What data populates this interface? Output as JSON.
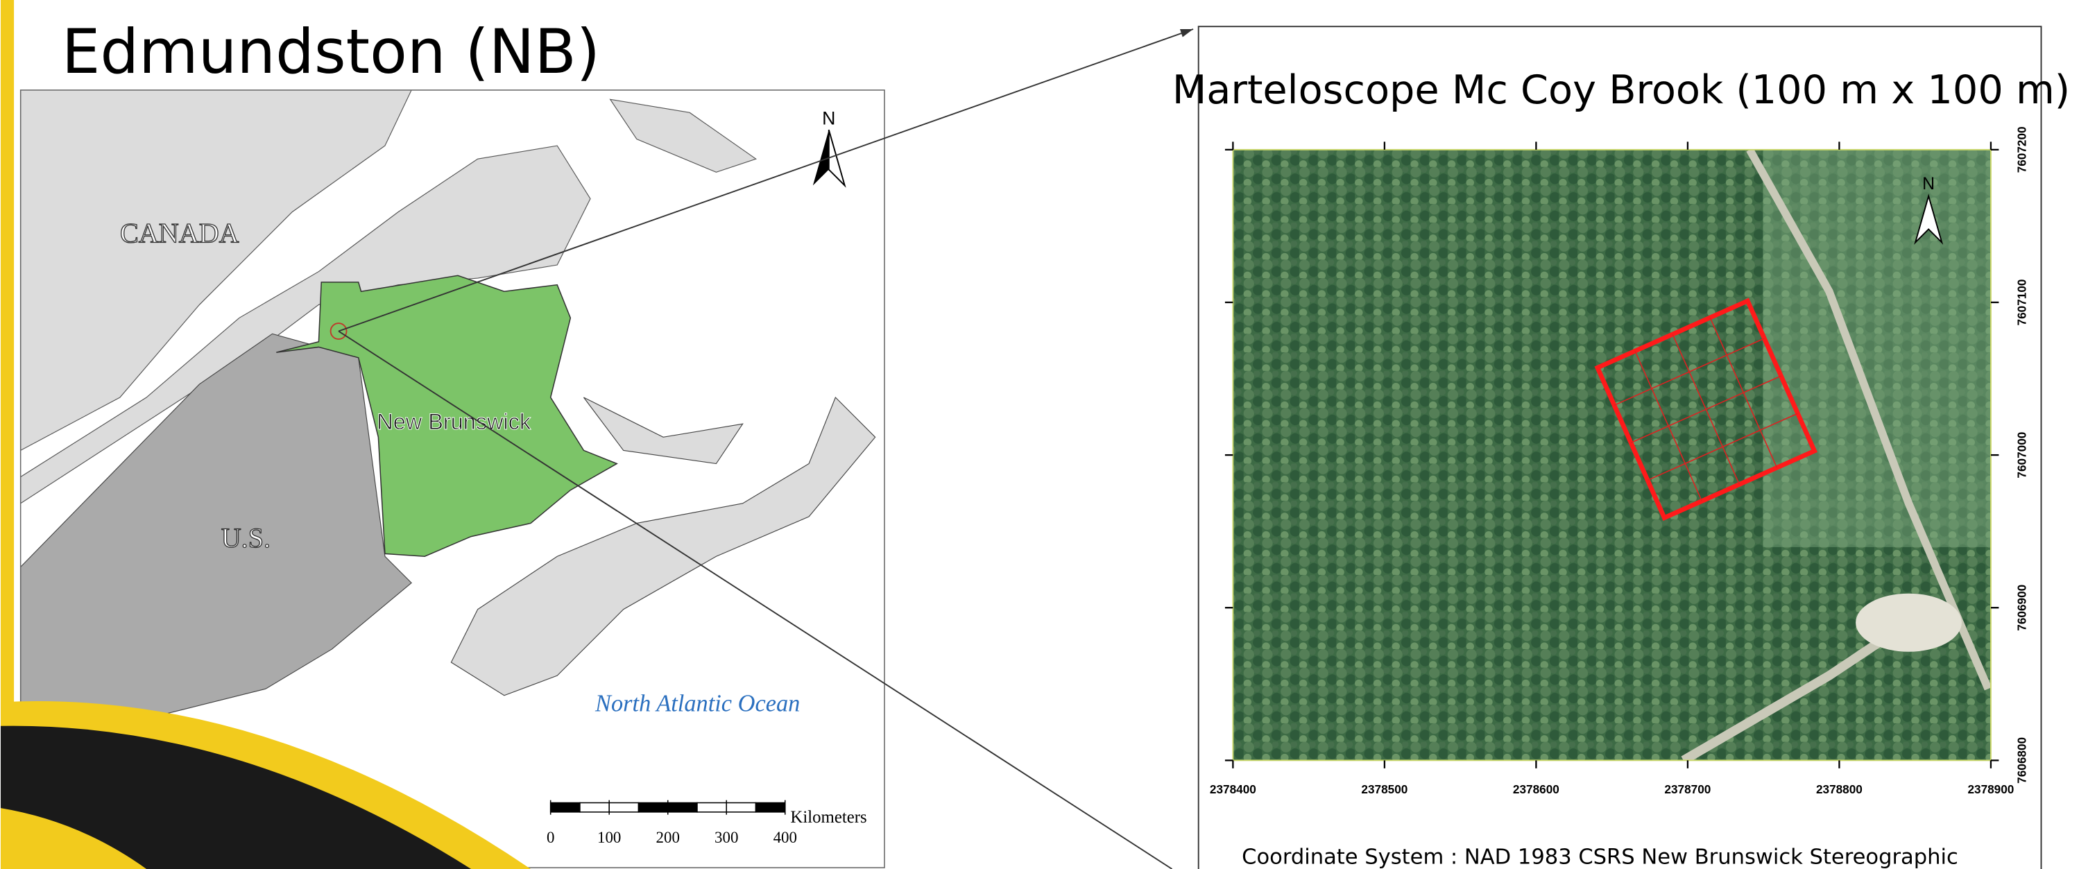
{
  "title": "Edmundston (NB)",
  "map": {
    "labels": {
      "canada": "CANADA",
      "us": "U.S.",
      "province": "New Brunswick",
      "ocean": "North Atlantic Ocean"
    },
    "north": "N",
    "scale_bar": {
      "ticks": [
        0,
        100,
        200,
        300,
        400
      ],
      "unit": "Kilometers"
    }
  },
  "inset": {
    "title": "Marteloscope Mc Coy Brook (100 m x 100 m)",
    "north": "N",
    "x_ticks": [
      2378400,
      2378500,
      2378600,
      2378700,
      2378800,
      2378900
    ],
    "y_ticks": [
      7607200,
      7607100,
      7607000,
      7606900,
      7606800
    ],
    "coordinate_system": "Coordinate System : NAD 1983 CSRS New Brunswick Stereographic"
  }
}
